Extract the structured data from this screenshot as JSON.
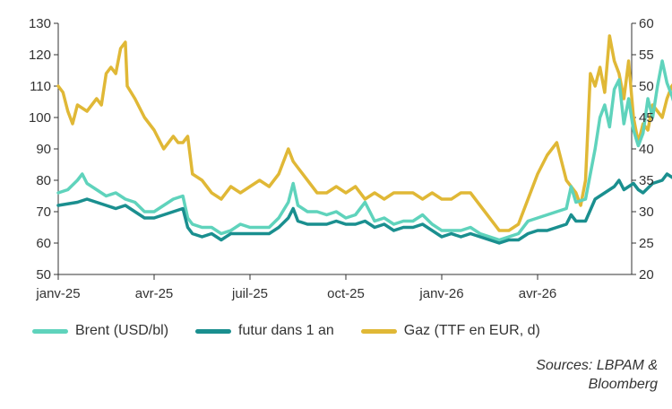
{
  "chart_data": {
    "type": "line",
    "x_ticks": [
      "janv-25",
      "avr-25",
      "juil-25",
      "oct-25",
      "janv-26",
      "avr-26"
    ],
    "y_left": {
      "min": 50,
      "max": 130,
      "ticks": [
        50,
        60,
        70,
        80,
        90,
        100,
        110,
        120,
        130
      ]
    },
    "y_right": {
      "min": 20,
      "max": 60,
      "ticks": [
        20,
        25,
        30,
        35,
        40,
        45,
        50,
        55,
        60
      ]
    },
    "grid": false,
    "legend_position": "bottom",
    "series": [
      {
        "name": "Brent (USD/bl)",
        "axis": "left",
        "color": "#5fd3bc",
        "points": [
          [
            0.0,
            76
          ],
          [
            0.1,
            77
          ],
          [
            0.2,
            80
          ],
          [
            0.25,
            82
          ],
          [
            0.3,
            79
          ],
          [
            0.4,
            77
          ],
          [
            0.5,
            75
          ],
          [
            0.6,
            76
          ],
          [
            0.7,
            74
          ],
          [
            0.8,
            73
          ],
          [
            0.9,
            70
          ],
          [
            1.0,
            70
          ],
          [
            1.1,
            72
          ],
          [
            1.2,
            74
          ],
          [
            1.3,
            75
          ],
          [
            1.35,
            68
          ],
          [
            1.4,
            66
          ],
          [
            1.5,
            65
          ],
          [
            1.6,
            65
          ],
          [
            1.7,
            63
          ],
          [
            1.8,
            64
          ],
          [
            1.9,
            66
          ],
          [
            2.0,
            65
          ],
          [
            2.1,
            65
          ],
          [
            2.2,
            65
          ],
          [
            2.3,
            68
          ],
          [
            2.4,
            73
          ],
          [
            2.45,
            79
          ],
          [
            2.5,
            72
          ],
          [
            2.6,
            70
          ],
          [
            2.7,
            70
          ],
          [
            2.8,
            69
          ],
          [
            2.9,
            70
          ],
          [
            3.0,
            68
          ],
          [
            3.1,
            69
          ],
          [
            3.2,
            73
          ],
          [
            3.3,
            67
          ],
          [
            3.4,
            68
          ],
          [
            3.5,
            66
          ],
          [
            3.6,
            67
          ],
          [
            3.7,
            67
          ],
          [
            3.8,
            69
          ],
          [
            3.9,
            66
          ],
          [
            4.0,
            64
          ],
          [
            4.1,
            64
          ],
          [
            4.2,
            64
          ],
          [
            4.3,
            65
          ],
          [
            4.4,
            63
          ],
          [
            4.5,
            62
          ],
          [
            4.6,
            61
          ],
          [
            4.7,
            62
          ],
          [
            4.8,
            63
          ],
          [
            4.9,
            67
          ],
          [
            5.0,
            68
          ],
          [
            5.1,
            69
          ],
          [
            5.2,
            70
          ],
          [
            5.3,
            71
          ],
          [
            5.35,
            78
          ],
          [
            5.4,
            73
          ],
          [
            5.5,
            74
          ],
          [
            5.6,
            90
          ],
          [
            5.65,
            100
          ],
          [
            5.7,
            104
          ],
          [
            5.75,
            97
          ],
          [
            5.8,
            109
          ],
          [
            5.85,
            112
          ],
          [
            5.9,
            98
          ],
          [
            5.95,
            106
          ],
          [
            6.0,
            96
          ],
          [
            6.05,
            91
          ],
          [
            6.1,
            95
          ],
          [
            6.15,
            106
          ],
          [
            6.2,
            100
          ],
          [
            6.25,
            110
          ],
          [
            6.3,
            118
          ],
          [
            6.35,
            111
          ],
          [
            6.4,
            107
          ],
          [
            6.45,
            102
          ],
          [
            6.5,
            98
          ],
          [
            6.55,
            94
          ],
          [
            6.6,
            93
          ]
        ]
      },
      {
        "name": "futur dans 1 an",
        "axis": "left",
        "color": "#1a8f8f",
        "points": [
          [
            0.0,
            72
          ],
          [
            0.2,
            73
          ],
          [
            0.3,
            74
          ],
          [
            0.4,
            73
          ],
          [
            0.5,
            72
          ],
          [
            0.6,
            71
          ],
          [
            0.7,
            72
          ],
          [
            0.8,
            70
          ],
          [
            0.9,
            68
          ],
          [
            1.0,
            68
          ],
          [
            1.1,
            69
          ],
          [
            1.2,
            70
          ],
          [
            1.3,
            71
          ],
          [
            1.35,
            65
          ],
          [
            1.4,
            63
          ],
          [
            1.5,
            62
          ],
          [
            1.6,
            63
          ],
          [
            1.7,
            61
          ],
          [
            1.8,
            63
          ],
          [
            1.9,
            63
          ],
          [
            2.0,
            63
          ],
          [
            2.1,
            63
          ],
          [
            2.2,
            63
          ],
          [
            2.3,
            65
          ],
          [
            2.4,
            68
          ],
          [
            2.45,
            71
          ],
          [
            2.5,
            67
          ],
          [
            2.6,
            66
          ],
          [
            2.7,
            66
          ],
          [
            2.8,
            66
          ],
          [
            2.9,
            67
          ],
          [
            3.0,
            66
          ],
          [
            3.1,
            66
          ],
          [
            3.2,
            67
          ],
          [
            3.3,
            65
          ],
          [
            3.4,
            66
          ],
          [
            3.5,
            64
          ],
          [
            3.6,
            65
          ],
          [
            3.7,
            65
          ],
          [
            3.8,
            66
          ],
          [
            3.9,
            64
          ],
          [
            4.0,
            62
          ],
          [
            4.1,
            63
          ],
          [
            4.2,
            62
          ],
          [
            4.3,
            63
          ],
          [
            4.4,
            62
          ],
          [
            4.5,
            61
          ],
          [
            4.6,
            60
          ],
          [
            4.7,
            61
          ],
          [
            4.8,
            61
          ],
          [
            4.9,
            63
          ],
          [
            5.0,
            64
          ],
          [
            5.1,
            64
          ],
          [
            5.2,
            65
          ],
          [
            5.3,
            66
          ],
          [
            5.35,
            69
          ],
          [
            5.4,
            67
          ],
          [
            5.5,
            67
          ],
          [
            5.6,
            74
          ],
          [
            5.7,
            76
          ],
          [
            5.8,
            78
          ],
          [
            5.85,
            80
          ],
          [
            5.9,
            77
          ],
          [
            6.0,
            79
          ],
          [
            6.05,
            77
          ],
          [
            6.1,
            76
          ],
          [
            6.2,
            79
          ],
          [
            6.3,
            80
          ],
          [
            6.35,
            82
          ],
          [
            6.4,
            81
          ],
          [
            6.45,
            80
          ],
          [
            6.5,
            80
          ],
          [
            6.55,
            79
          ],
          [
            6.6,
            79
          ]
        ]
      },
      {
        "name": "Gaz (TTF en EUR, d)",
        "axis": "right",
        "color": "#e0b836",
        "points": [
          [
            0.0,
            50
          ],
          [
            0.05,
            49
          ],
          [
            0.1,
            46
          ],
          [
            0.15,
            44
          ],
          [
            0.2,
            47
          ],
          [
            0.3,
            46
          ],
          [
            0.4,
            48
          ],
          [
            0.45,
            47
          ],
          [
            0.5,
            52
          ],
          [
            0.55,
            53
          ],
          [
            0.6,
            52
          ],
          [
            0.65,
            56
          ],
          [
            0.7,
            57
          ],
          [
            0.72,
            50
          ],
          [
            0.8,
            48
          ],
          [
            0.9,
            45
          ],
          [
            1.0,
            43
          ],
          [
            1.1,
            40
          ],
          [
            1.2,
            42
          ],
          [
            1.25,
            41
          ],
          [
            1.3,
            41
          ],
          [
            1.35,
            42
          ],
          [
            1.4,
            36
          ],
          [
            1.5,
            35
          ],
          [
            1.6,
            33
          ],
          [
            1.7,
            32
          ],
          [
            1.8,
            34
          ],
          [
            1.9,
            33
          ],
          [
            2.0,
            34
          ],
          [
            2.1,
            35
          ],
          [
            2.2,
            34
          ],
          [
            2.3,
            36
          ],
          [
            2.4,
            40
          ],
          [
            2.45,
            38
          ],
          [
            2.5,
            37
          ],
          [
            2.6,
            35
          ],
          [
            2.7,
            33
          ],
          [
            2.8,
            33
          ],
          [
            2.9,
            34
          ],
          [
            3.0,
            33
          ],
          [
            3.1,
            34
          ],
          [
            3.2,
            32
          ],
          [
            3.3,
            33
          ],
          [
            3.4,
            32
          ],
          [
            3.5,
            33
          ],
          [
            3.6,
            33
          ],
          [
            3.7,
            33
          ],
          [
            3.8,
            32
          ],
          [
            3.9,
            33
          ],
          [
            4.0,
            32
          ],
          [
            4.1,
            32
          ],
          [
            4.2,
            33
          ],
          [
            4.3,
            33
          ],
          [
            4.4,
            31
          ],
          [
            4.5,
            29
          ],
          [
            4.6,
            27
          ],
          [
            4.7,
            27
          ],
          [
            4.8,
            28
          ],
          [
            4.9,
            32
          ],
          [
            5.0,
            36
          ],
          [
            5.1,
            39
          ],
          [
            5.2,
            41
          ],
          [
            5.3,
            35
          ],
          [
            5.4,
            33
          ],
          [
            5.45,
            31
          ],
          [
            5.5,
            35
          ],
          [
            5.55,
            52
          ],
          [
            5.6,
            50
          ],
          [
            5.65,
            53
          ],
          [
            5.7,
            49
          ],
          [
            5.75,
            58
          ],
          [
            5.8,
            54
          ],
          [
            5.85,
            52
          ],
          [
            5.9,
            48
          ],
          [
            5.95,
            54
          ],
          [
            6.0,
            45
          ],
          [
            6.05,
            41
          ],
          [
            6.1,
            44
          ],
          [
            6.15,
            43
          ],
          [
            6.2,
            47
          ],
          [
            6.25,
            46
          ],
          [
            6.3,
            45
          ],
          [
            6.35,
            48
          ],
          [
            6.4,
            50
          ],
          [
            6.45,
            51
          ],
          [
            6.5,
            49
          ],
          [
            6.55,
            46
          ],
          [
            6.6,
            47
          ]
        ]
      }
    ]
  },
  "source": {
    "line1": "Sources: LBPAM &",
    "line2": "Bloomberg"
  }
}
